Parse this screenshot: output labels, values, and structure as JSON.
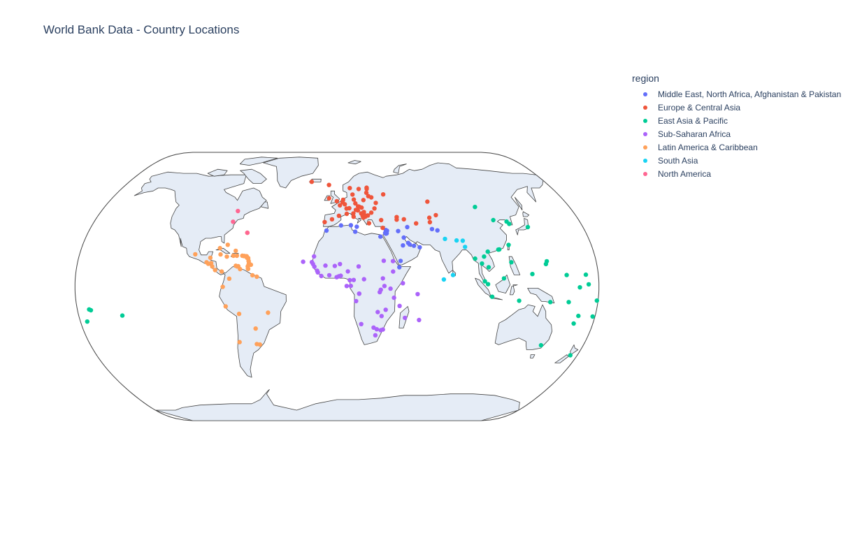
{
  "chart": {
    "title": "World Bank Data - Country Locations",
    "legend_title": "region"
  },
  "chart_data": {
    "type": "scatter",
    "subtype": "scatter_geo",
    "projection": "natural earth",
    "title": "World Bank Data - Country Locations",
    "legend": {
      "title": "region",
      "placement": "top-right"
    },
    "land_color": "#e5ecf6",
    "coast_color": "#444444",
    "series": [
      {
        "name": "Middle East, North Africa, Afghanistan & Pakistan",
        "color": "#636efa",
        "points": [
          [
            -7.6,
            33.6
          ],
          [
            3.0,
            36.7
          ],
          [
            10.2,
            36.8
          ],
          [
            13.2,
            32.9
          ],
          [
            31.2,
            30.0
          ],
          [
            35.5,
            33.9
          ],
          [
            36.3,
            33.5
          ],
          [
            35.9,
            31.9
          ],
          [
            35.2,
            31.8
          ],
          [
            34.8,
            32.1
          ],
          [
            44.4,
            33.3
          ],
          [
            51.4,
            35.7
          ],
          [
            47.9,
            29.4
          ],
          [
            50.6,
            26.2
          ],
          [
            51.5,
            25.3
          ],
          [
            54.4,
            24.5
          ],
          [
            58.4,
            23.6
          ],
          [
            46.7,
            24.7
          ],
          [
            44.2,
            15.4
          ],
          [
            43.1,
            11.6
          ],
          [
            69.2,
            34.5
          ],
          [
            73.0,
            33.7
          ],
          [
            14.5,
            35.9
          ]
        ]
      },
      {
        "name": "Europe & Central Asia",
        "color": "#EF553B",
        "points": [
          [
            -21.9,
            64.1
          ],
          [
            -6.8,
            62.0
          ],
          [
            10.7,
            59.9
          ],
          [
            18.1,
            59.3
          ],
          [
            24.9,
            60.2
          ],
          [
            12.6,
            55.7
          ],
          [
            -0.1,
            51.5
          ],
          [
            -6.3,
            53.3
          ],
          [
            2.3,
            48.9
          ],
          [
            4.9,
            52.4
          ],
          [
            4.4,
            50.8
          ],
          [
            6.1,
            49.6
          ],
          [
            13.4,
            52.5
          ],
          [
            21.0,
            52.2
          ],
          [
            24.1,
            56.9
          ],
          [
            25.3,
            54.7
          ],
          [
            24.8,
            59.4
          ],
          [
            27.6,
            53.9
          ],
          [
            30.5,
            50.4
          ],
          [
            37.6,
            55.8
          ],
          [
            28.9,
            47.0
          ],
          [
            26.1,
            44.4
          ],
          [
            19.0,
            47.5
          ],
          [
            17.1,
            48.1
          ],
          [
            14.4,
            50.1
          ],
          [
            16.4,
            48.2
          ],
          [
            7.4,
            46.9
          ],
          [
            9.5,
            47.1
          ],
          [
            12.5,
            41.9
          ],
          [
            14.5,
            46.1
          ],
          [
            16.0,
            45.8
          ],
          [
            18.4,
            43.9
          ],
          [
            20.5,
            44.8
          ],
          [
            19.3,
            42.4
          ],
          [
            19.8,
            41.3
          ],
          [
            21.4,
            42.0
          ],
          [
            23.3,
            42.7
          ],
          [
            23.7,
            38.0
          ],
          [
            32.9,
            39.9
          ],
          [
            33.4,
            35.2
          ],
          [
            44.8,
            41.7
          ],
          [
            44.5,
            40.2
          ],
          [
            49.9,
            40.4
          ],
          [
            58.4,
            37.9
          ],
          [
            69.2,
            41.3
          ],
          [
            68.8,
            38.6
          ],
          [
            74.6,
            42.9
          ],
          [
            71.4,
            51.2
          ],
          [
            -3.7,
            40.4
          ],
          [
            -9.1,
            38.7
          ],
          [
            7.4,
            43.7
          ],
          [
            12.4,
            43.9
          ],
          [
            21.2,
            42.7
          ],
          [
            1.5,
            42.5
          ]
        ]
      },
      {
        "name": "East Asia & Pacific",
        "color": "#00cc96",
        "points": [
          [
            106.9,
            47.9
          ],
          [
            116.4,
            39.9
          ],
          [
            125.8,
            39.0
          ],
          [
            127.0,
            37.6
          ],
          [
            139.7,
            35.7
          ],
          [
            121.5,
            25.0
          ],
          [
            114.2,
            22.3
          ],
          [
            113.5,
            22.2
          ],
          [
            96.2,
            16.8
          ],
          [
            100.5,
            13.8
          ],
          [
            102.6,
            18.0
          ],
          [
            105.8,
            21.0
          ],
          [
            104.9,
            11.6
          ],
          [
            101.7,
            3.1
          ],
          [
            103.8,
            1.4
          ],
          [
            114.9,
            4.9
          ],
          [
            106.8,
            -6.2
          ],
          [
            121.0,
            14.6
          ],
          [
            125.6,
            -8.6
          ],
          [
            147.2,
            -9.4
          ],
          [
            159.9,
            -9.4
          ],
          [
            168.3,
            -17.7
          ],
          [
            178.4,
            -18.1
          ],
          [
            174.8,
            -41.3
          ],
          [
            149.1,
            -35.3
          ],
          [
            171.4,
            7.1
          ],
          [
            134.6,
            7.5
          ],
          [
            158.2,
            6.9
          ],
          [
            173.0,
            1.3
          ],
          [
            166.9,
            -0.5
          ],
          [
            179.2,
            -8.5
          ],
          [
            -175.2,
            -21.1
          ],
          [
            -171.8,
            -13.8
          ],
          [
            -170.7,
            -14.3
          ],
          [
            -149.6,
            -17.5
          ],
          [
            144.8,
            13.5
          ],
          [
            145.7,
            15.2
          ],
          [
            166.5,
            -22.3
          ]
        ]
      },
      {
        "name": "Sub-Saharan Africa",
        "color": "#ab63fa",
        "points": [
          [
            -17.4,
            14.7
          ],
          [
            -16.6,
            13.5
          ],
          [
            -15.6,
            11.9
          ],
          [
            -13.7,
            9.5
          ],
          [
            -13.2,
            8.5
          ],
          [
            -10.8,
            6.3
          ],
          [
            -5.3,
            6.8
          ],
          [
            -0.2,
            5.6
          ],
          [
            1.2,
            6.1
          ],
          [
            2.6,
            6.5
          ],
          [
            7.5,
            9.1
          ],
          [
            -1.5,
            12.4
          ],
          [
            2.1,
            13.5
          ],
          [
            -8.0,
            12.6
          ],
          [
            -16.0,
            18.1
          ],
          [
            15.0,
            12.1
          ],
          [
            18.6,
            4.4
          ],
          [
            11.5,
            3.9
          ],
          [
            8.8,
            3.8
          ],
          [
            9.5,
            0.4
          ],
          [
            6.7,
            0.3
          ],
          [
            15.3,
            -4.3
          ],
          [
            15.3,
            -4.4
          ],
          [
            13.2,
            -8.8
          ],
          [
            28.3,
            -15.4
          ],
          [
            31.1,
            -17.8
          ],
          [
            33.8,
            -14.0
          ],
          [
            32.6,
            -25.9
          ],
          [
            31.1,
            -26.3
          ],
          [
            27.5,
            -29.3
          ],
          [
            28.2,
            -25.7
          ],
          [
            25.9,
            -24.7
          ],
          [
            17.1,
            -22.6
          ],
          [
            47.5,
            -18.9
          ],
          [
            57.5,
            -20.2
          ],
          [
            43.3,
            -11.7
          ],
          [
            55.5,
            -4.6
          ],
          [
            39.3,
            -6.8
          ],
          [
            32.6,
            0.3
          ],
          [
            36.8,
            -1.3
          ],
          [
            30.1,
            -2.0
          ],
          [
            29.4,
            -3.4
          ],
          [
            38.7,
            9.0
          ],
          [
            45.3,
            2.0
          ],
          [
            32.5,
            15.5
          ],
          [
            31.6,
            4.9
          ],
          [
            38.9,
            15.3
          ],
          [
            -23.5,
            14.9
          ]
        ]
      },
      {
        "name": "Latin America & Caribbean",
        "color": "#FFA15A",
        "points": [
          [
            -99.1,
            19.4
          ],
          [
            -90.5,
            14.6
          ],
          [
            -88.2,
            17.3
          ],
          [
            -89.2,
            13.7
          ],
          [
            -87.2,
            14.1
          ],
          [
            -86.3,
            12.1
          ],
          [
            -84.1,
            9.9
          ],
          [
            -79.5,
            9.0
          ],
          [
            -82.4,
            23.1
          ],
          [
            -76.8,
            18.0
          ],
          [
            -72.3,
            18.5
          ],
          [
            -69.9,
            18.5
          ],
          [
            -66.1,
            18.5
          ],
          [
            -77.3,
            25.1
          ],
          [
            -71.1,
            21.5
          ],
          [
            -81.4,
            19.3
          ],
          [
            -64.8,
            32.3
          ],
          [
            -64.9,
            18.3
          ],
          [
            -64.6,
            18.4
          ],
          [
            -62.7,
            17.3
          ],
          [
            -61.8,
            17.1
          ],
          [
            -61.4,
            15.3
          ],
          [
            -61.2,
            13.2
          ],
          [
            -61.0,
            14.0
          ],
          [
            -59.6,
            13.1
          ],
          [
            -61.7,
            12.1
          ],
          [
            -61.5,
            10.7
          ],
          [
            -70.0,
            12.5
          ],
          [
            -69.0,
            12.1
          ],
          [
            -68.3,
            12.2
          ],
          [
            -74.1,
            4.7
          ],
          [
            -66.9,
            10.5
          ],
          [
            -58.2,
            6.8
          ],
          [
            -55.2,
            5.9
          ],
          [
            -78.5,
            -0.2
          ],
          [
            -77.0,
            -12.0
          ],
          [
            -68.1,
            -16.5
          ],
          [
            -47.9,
            -15.8
          ],
          [
            -57.6,
            -25.3
          ],
          [
            -58.4,
            -34.6
          ],
          [
            -56.2,
            -34.9
          ],
          [
            -70.7,
            -33.4
          ],
          [
            -62.9,
            18.0
          ],
          [
            -63.1,
            18.2
          ],
          [
            -72.3,
            18.6
          ],
          [
            -61.3,
            10.6
          ],
          [
            -61.4,
            15.4
          ],
          [
            -63.0,
            18.1
          ]
        ]
      },
      {
        "name": "South Asia",
        "color": "#19d3f3",
        "points": [
          [
            77.2,
            28.6
          ],
          [
            85.3,
            27.7
          ],
          [
            89.6,
            27.5
          ],
          [
            90.4,
            23.8
          ],
          [
            79.9,
            6.9
          ],
          [
            73.5,
            4.2
          ]
        ]
      },
      {
        "name": "North America",
        "color": "#FF6692",
        "points": [
          [
            -75.7,
            45.4
          ],
          [
            -77.0,
            38.9
          ],
          [
            -64.8,
            32.3
          ]
        ]
      }
    ]
  }
}
